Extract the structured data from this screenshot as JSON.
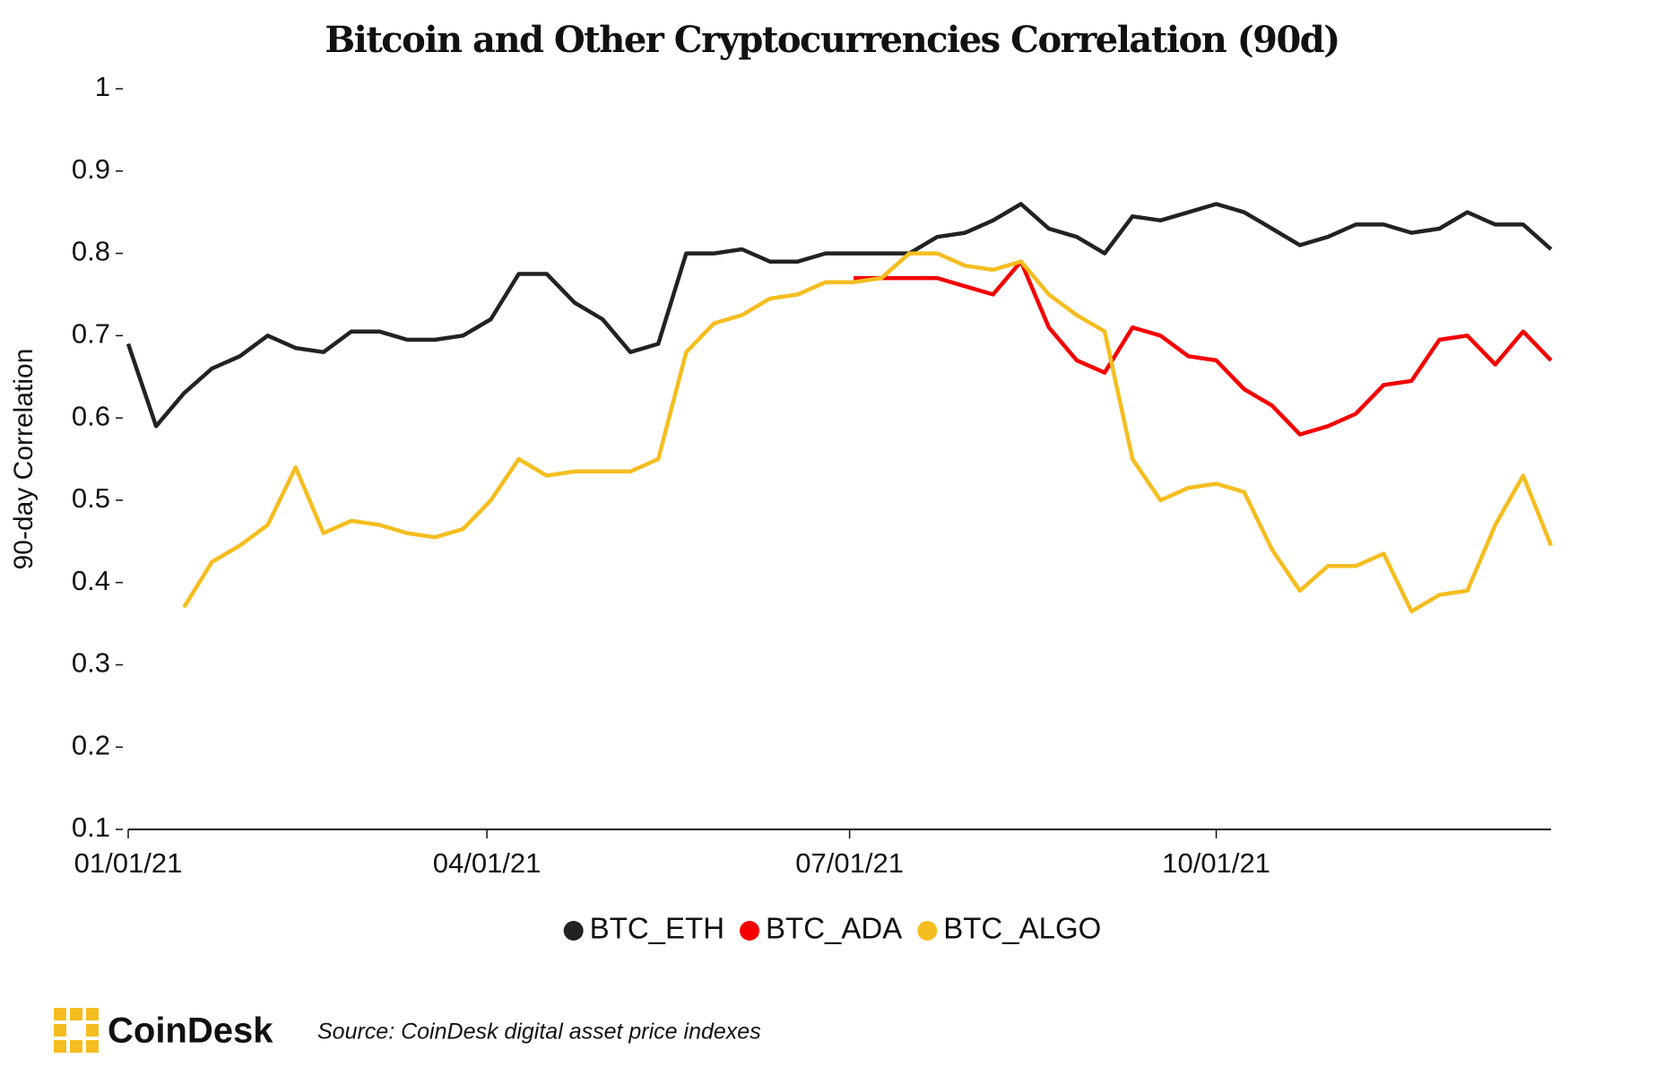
{
  "chart_data": {
    "type": "line",
    "title": "Bitcoin and Other Cryptocurrencies Correlation (90d)",
    "y_label": "90-day Correlation",
    "x": [
      "2021-01-01",
      "2021-01-08",
      "2021-01-15",
      "2021-01-22",
      "2021-01-29",
      "2021-02-05",
      "2021-02-12",
      "2021-02-19",
      "2021-02-26",
      "2021-03-05",
      "2021-03-12",
      "2021-03-19",
      "2021-03-26",
      "2021-04-02",
      "2021-04-09",
      "2021-04-16",
      "2021-04-23",
      "2021-04-30",
      "2021-05-07",
      "2021-05-14",
      "2021-05-21",
      "2021-05-28",
      "2021-06-04",
      "2021-06-11",
      "2021-06-18",
      "2021-06-25",
      "2021-07-02",
      "2021-07-09",
      "2021-07-16",
      "2021-07-23",
      "2021-07-30",
      "2021-08-06",
      "2021-08-13",
      "2021-08-20",
      "2021-08-27",
      "2021-09-03",
      "2021-09-10",
      "2021-09-17",
      "2021-09-24",
      "2021-10-01",
      "2021-10-08",
      "2021-10-15",
      "2021-10-22",
      "2021-10-29",
      "2021-11-05",
      "2021-11-12",
      "2021-11-19",
      "2021-11-26",
      "2021-12-03",
      "2021-12-10",
      "2021-12-17",
      "2021-12-24"
    ],
    "series": [
      {
        "name": "BTC_ETH",
        "color": "#222222",
        "values": [
          0.69,
          0.59,
          0.63,
          0.66,
          0.675,
          0.7,
          0.685,
          0.68,
          0.705,
          0.705,
          0.695,
          0.695,
          0.7,
          0.72,
          0.775,
          0.775,
          0.74,
          0.72,
          0.68,
          0.69,
          0.8,
          0.8,
          0.805,
          0.79,
          0.79,
          0.8,
          0.8,
          0.8,
          0.8,
          0.82,
          0.825,
          0.84,
          0.86,
          0.83,
          0.82,
          0.8,
          0.845,
          0.84,
          0.85,
          0.86,
          0.85,
          0.83,
          0.81,
          0.82,
          0.835,
          0.835,
          0.825,
          0.83,
          0.85,
          0.835,
          0.835,
          0.805
        ]
      },
      {
        "name": "BTC_ADA",
        "color": "#f50000",
        "values": [
          null,
          null,
          null,
          null,
          null,
          null,
          null,
          null,
          null,
          null,
          null,
          null,
          null,
          null,
          null,
          null,
          null,
          null,
          null,
          null,
          null,
          null,
          null,
          null,
          null,
          null,
          0.77,
          0.77,
          0.77,
          0.77,
          0.76,
          0.75,
          0.79,
          0.71,
          0.67,
          0.655,
          0.71,
          0.7,
          0.675,
          0.67,
          0.635,
          0.615,
          0.58,
          0.59,
          0.605,
          0.64,
          0.645,
          0.695,
          0.7,
          0.665,
          0.705,
          0.67
        ]
      },
      {
        "name": "BTC_ALGO",
        "color": "#f5bd1f",
        "values": [
          null,
          null,
          0.37,
          0.425,
          0.445,
          0.47,
          0.54,
          0.46,
          0.475,
          0.47,
          0.46,
          0.455,
          0.465,
          0.5,
          0.55,
          0.53,
          0.535,
          0.535,
          0.535,
          0.55,
          0.68,
          0.715,
          0.725,
          0.745,
          0.75,
          0.765,
          0.765,
          0.77,
          0.8,
          0.8,
          0.785,
          0.78,
          0.79,
          0.75,
          0.725,
          0.705,
          0.55,
          0.5,
          0.515,
          0.52,
          0.51,
          0.44,
          0.39,
          0.42,
          0.42,
          0.435,
          0.365,
          0.385,
          0.39,
          0.47,
          0.53,
          0.445
        ]
      }
    ],
    "xlim": [
      "2021-01-01",
      "2021-12-24"
    ],
    "xticks": [
      {
        "value": "2021-01-01",
        "label": "01/01/21"
      },
      {
        "value": "2021-04-01",
        "label": "04/01/21"
      },
      {
        "value": "2021-07-01",
        "label": "07/01/21"
      },
      {
        "value": "2021-10-01",
        "label": "10/01/21"
      }
    ],
    "ylim": [
      0.1,
      1
    ],
    "yticks": [
      0.1,
      0.2,
      0.3,
      0.4,
      0.5,
      0.6,
      0.7,
      0.8,
      0.9,
      1
    ],
    "grid": false,
    "legend": "bottom"
  },
  "footer": {
    "brand": "CoinDesk",
    "source": "Source: CoinDesk digital asset price indexes"
  }
}
